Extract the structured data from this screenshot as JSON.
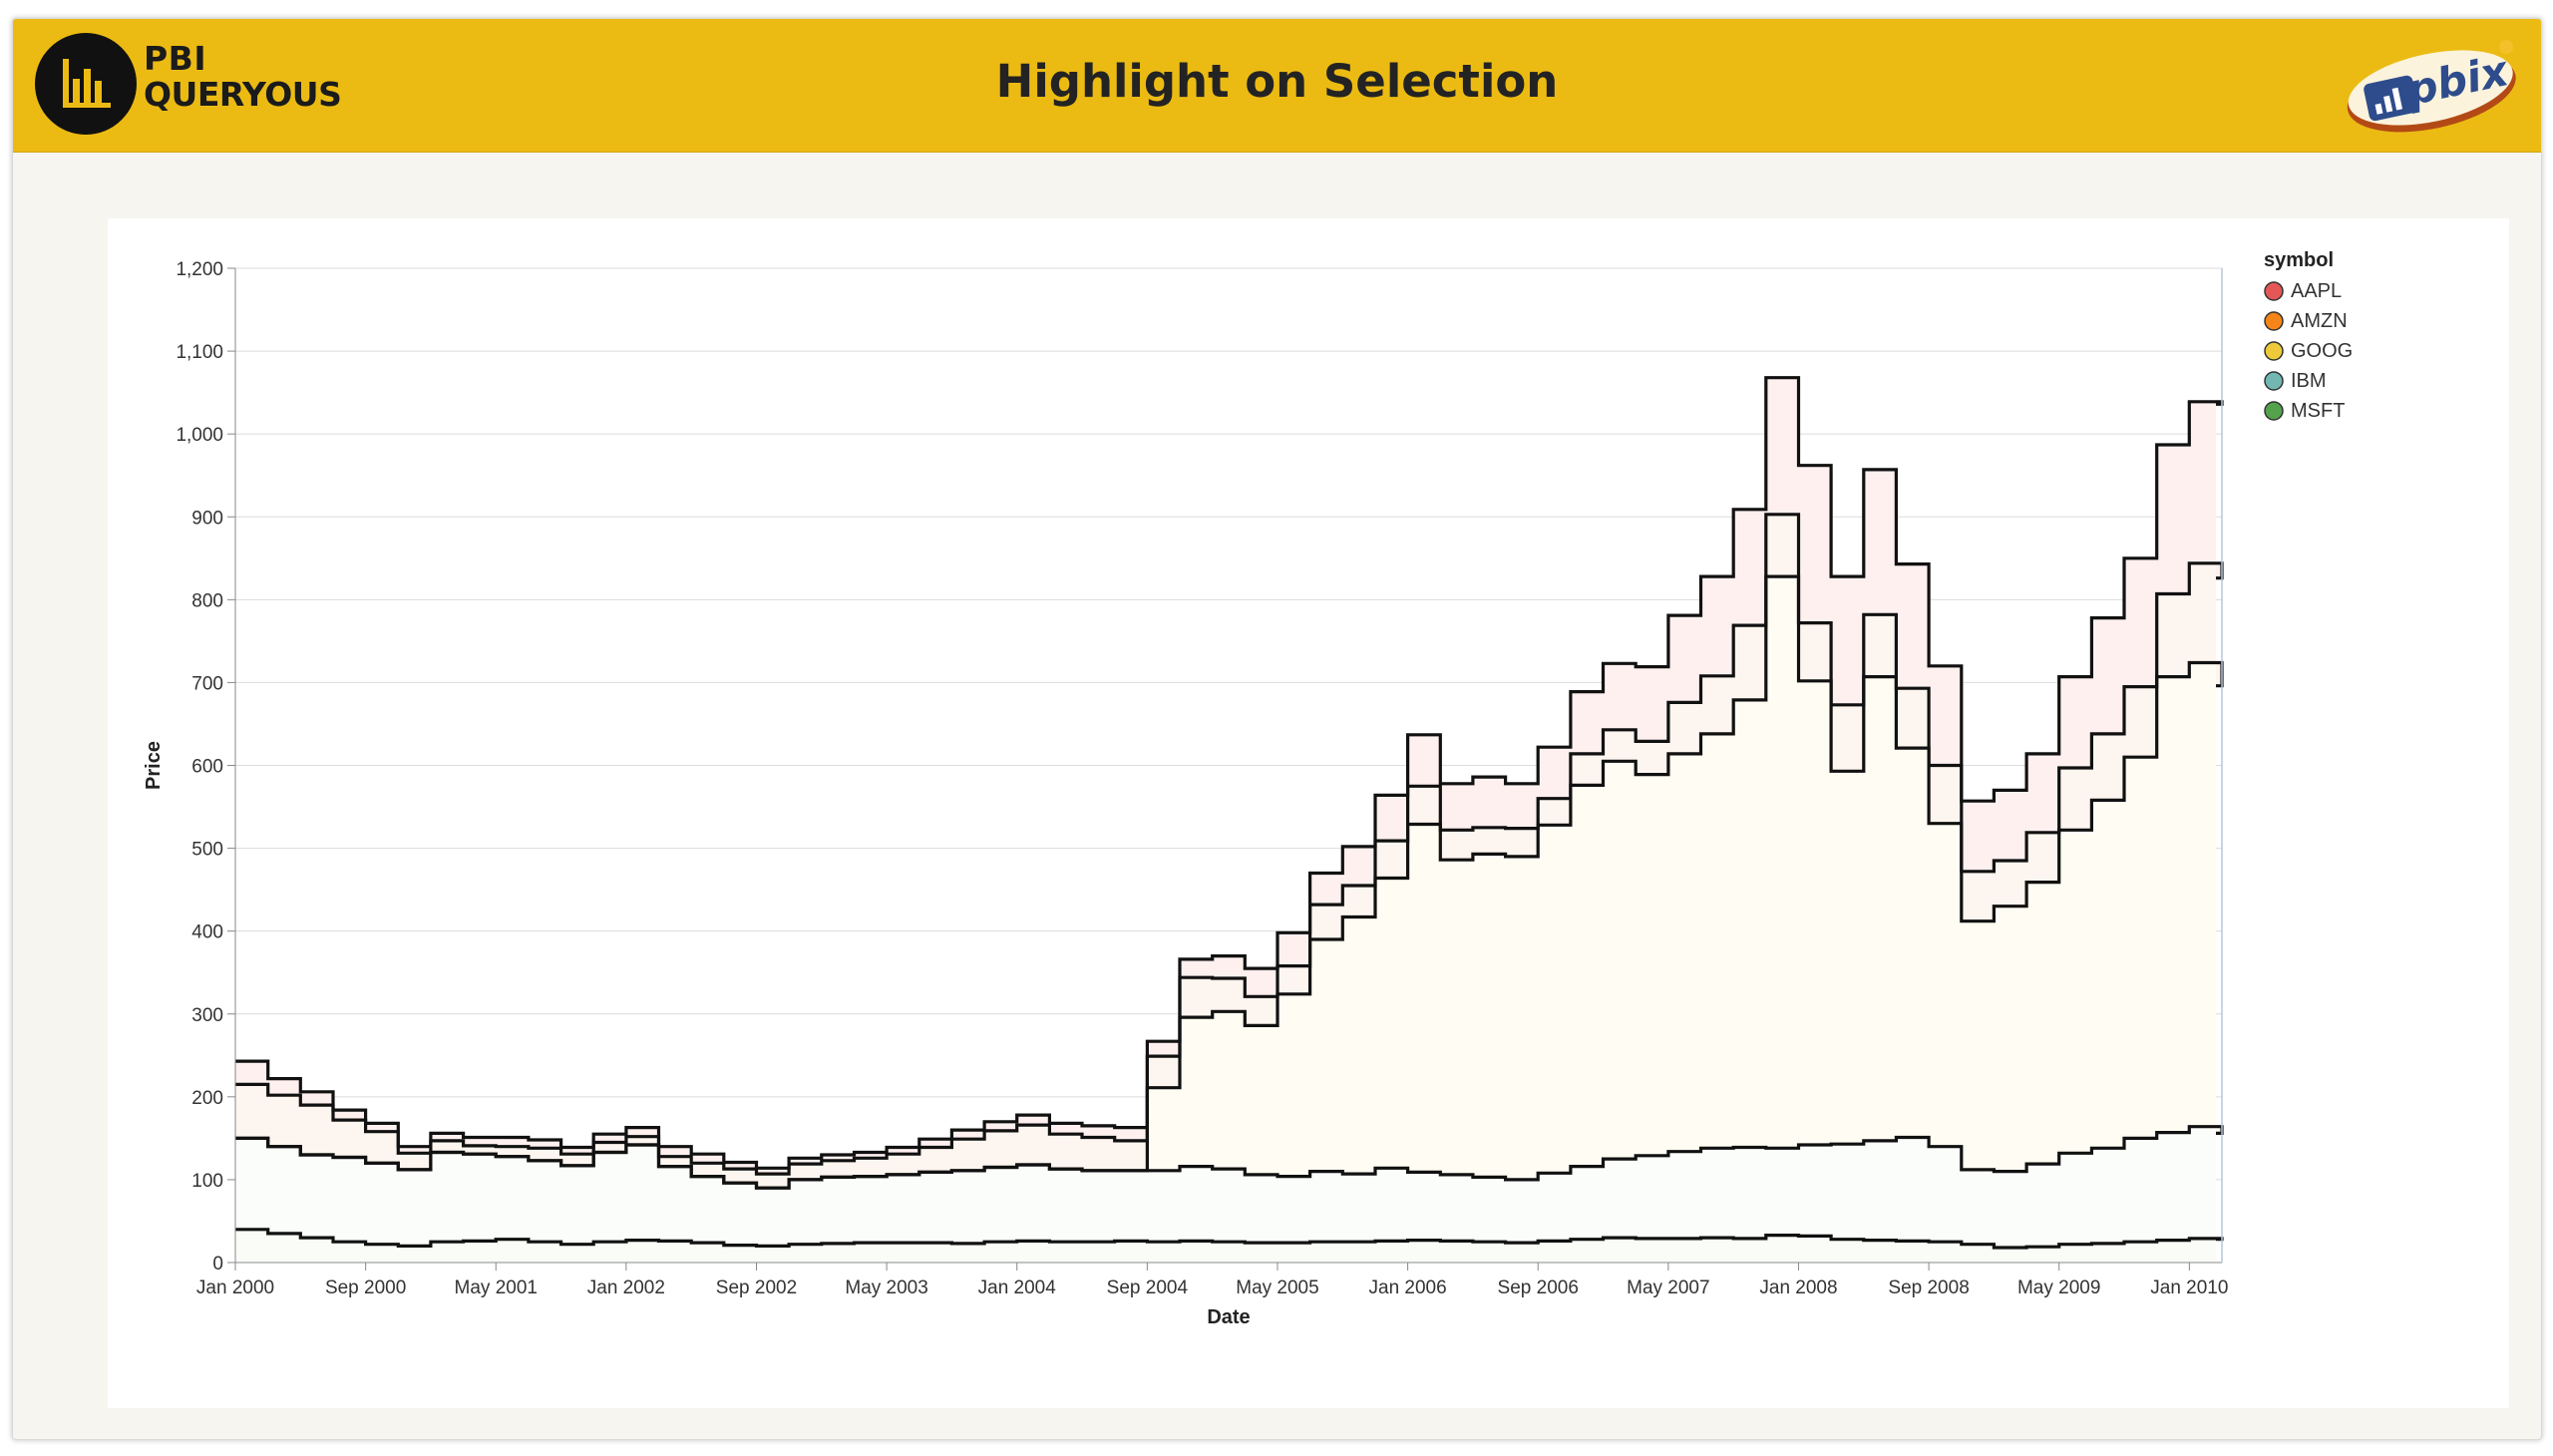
{
  "header": {
    "brand_line1": "PBI",
    "brand_line2": "QUERYOUS",
    "title": "Highlight on Selection",
    "badge_text": "pbix",
    "background_color": "#ecbb13"
  },
  "chart_data": {
    "type": "area",
    "title": "",
    "xlabel": "Date",
    "ylabel": "Price",
    "xlim": [
      "2000-01-01",
      "2010-03-01"
    ],
    "ylim": [
      0,
      1200
    ],
    "y_ticks": [
      0,
      100,
      200,
      300,
      400,
      500,
      600,
      700,
      800,
      900,
      1000,
      1100,
      1200
    ],
    "y_tick_labels": [
      "0",
      "100",
      "200",
      "300",
      "400",
      "500",
      "600",
      "700",
      "800",
      "900",
      "1,000",
      "1,100",
      "1,200"
    ],
    "x_ticks": [
      "2000-01-01",
      "2000-09-01",
      "2001-05-01",
      "2002-01-01",
      "2002-09-01",
      "2003-05-01",
      "2004-01-01",
      "2004-09-01",
      "2005-05-01",
      "2006-01-01",
      "2006-09-01",
      "2007-05-01",
      "2008-01-01",
      "2008-09-01",
      "2009-05-01",
      "2010-01-01"
    ],
    "x_tick_labels": [
      "Jan 2000",
      "Sep 2000",
      "May 2001",
      "Jan 2002",
      "Sep 2002",
      "May 2003",
      "Jan 2004",
      "Sep 2004",
      "May 2005",
      "Jan 2006",
      "Sep 2006",
      "May 2007",
      "Jan 2008",
      "Sep 2008",
      "May 2009",
      "Jan 2010"
    ],
    "stacked": true,
    "interpolation": "step",
    "grid": true,
    "legend": {
      "title": "symbol",
      "position": "right"
    },
    "x": [
      "2000-01",
      "2000-03",
      "2000-05",
      "2000-07",
      "2000-09",
      "2000-11",
      "2001-01",
      "2001-03",
      "2001-05",
      "2001-07",
      "2001-09",
      "2001-11",
      "2002-01",
      "2002-03",
      "2002-05",
      "2002-07",
      "2002-09",
      "2002-11",
      "2003-01",
      "2003-03",
      "2003-05",
      "2003-07",
      "2003-09",
      "2003-11",
      "2004-01",
      "2004-03",
      "2004-05",
      "2004-07",
      "2004-09",
      "2004-11",
      "2005-01",
      "2005-03",
      "2005-05",
      "2005-07",
      "2005-09",
      "2005-11",
      "2006-01",
      "2006-03",
      "2006-05",
      "2006-07",
      "2006-09",
      "2006-11",
      "2007-01",
      "2007-03",
      "2007-05",
      "2007-07",
      "2007-09",
      "2007-11",
      "2008-01",
      "2008-03",
      "2008-05",
      "2008-07",
      "2008-09",
      "2008-11",
      "2009-01",
      "2009-03",
      "2009-05",
      "2009-07",
      "2009-09",
      "2009-11",
      "2010-01",
      "2010-03"
    ],
    "series": [
      {
        "name": "AAPL",
        "color": "#e45756",
        "values": [
          28,
          20,
          16,
          12,
          10,
          8,
          9,
          10,
          11,
          10,
          8,
          10,
          11,
          12,
          11,
          8,
          7,
          7,
          7,
          7,
          8,
          10,
          11,
          11,
          12,
          13,
          14,
          16,
          18,
          22,
          27,
          34,
          40,
          38,
          47,
          55,
          62,
          56,
          61,
          54,
          62,
          75,
          80,
          90,
          105,
          120,
          140,
          165,
          190,
          155,
          175,
          150,
          120,
          85,
          85,
          95,
          110,
          140,
          155,
          180,
          195,
          210
        ]
      },
      {
        "name": "AMZN",
        "color": "#f58518",
        "values": [
          65,
          62,
          60,
          45,
          38,
          20,
          14,
          10,
          12,
          15,
          14,
          12,
          10,
          12,
          16,
          17,
          17,
          19,
          20,
          22,
          25,
          30,
          38,
          44,
          48,
          42,
          40,
          36,
          38,
          48,
          40,
          35,
          34,
          42,
          38,
          45,
          46,
          36,
          32,
          34,
          32,
          38,
          38,
          40,
          62,
          70,
          90,
          75,
          70,
          80,
          75,
          72,
          70,
          60,
          55,
          60,
          75,
          80,
          85,
          100,
          120,
          130
        ]
      },
      {
        "name": "GOOG",
        "color": "#eeca3b",
        "values": [
          0,
          0,
          0,
          0,
          0,
          0,
          0,
          0,
          0,
          0,
          0,
          0,
          0,
          0,
          0,
          0,
          0,
          0,
          0,
          0,
          0,
          0,
          0,
          0,
          0,
          0,
          0,
          0,
          100,
          180,
          190,
          180,
          220,
          280,
          310,
          350,
          420,
          380,
          390,
          390,
          420,
          460,
          480,
          460,
          480,
          500,
          540,
          690,
          560,
          450,
          560,
          470,
          390,
          300,
          320,
          340,
          390,
          420,
          460,
          550,
          560,
          540
        ]
      },
      {
        "name": "IBM",
        "color": "#72b7b2",
        "values": [
          110,
          105,
          100,
          102,
          98,
          92,
          108,
          105,
          100,
          98,
          95,
          108,
          115,
          90,
          80,
          75,
          70,
          78,
          80,
          80,
          82,
          85,
          88,
          90,
          92,
          88,
          86,
          85,
          86,
          90,
          88,
          82,
          80,
          85,
          82,
          88,
          82,
          80,
          78,
          76,
          82,
          88,
          95,
          100,
          105,
          108,
          110,
          105,
          110,
          115,
          120,
          125,
          115,
          90,
          92,
          100,
          110,
          115,
          125,
          130,
          135,
          128
        ]
      },
      {
        "name": "MSFT",
        "color": "#54a24b",
        "values": [
          40,
          35,
          30,
          25,
          22,
          20,
          25,
          26,
          28,
          25,
          22,
          25,
          27,
          26,
          24,
          21,
          20,
          22,
          23,
          24,
          24,
          24,
          23,
          25,
          26,
          25,
          25,
          26,
          25,
          26,
          25,
          24,
          24,
          25,
          25,
          26,
          27,
          26,
          25,
          24,
          26,
          28,
          30,
          29,
          29,
          30,
          29,
          33,
          32,
          28,
          27,
          26,
          25,
          22,
          18,
          19,
          22,
          23,
          25,
          27,
          29,
          28
        ]
      }
    ]
  }
}
